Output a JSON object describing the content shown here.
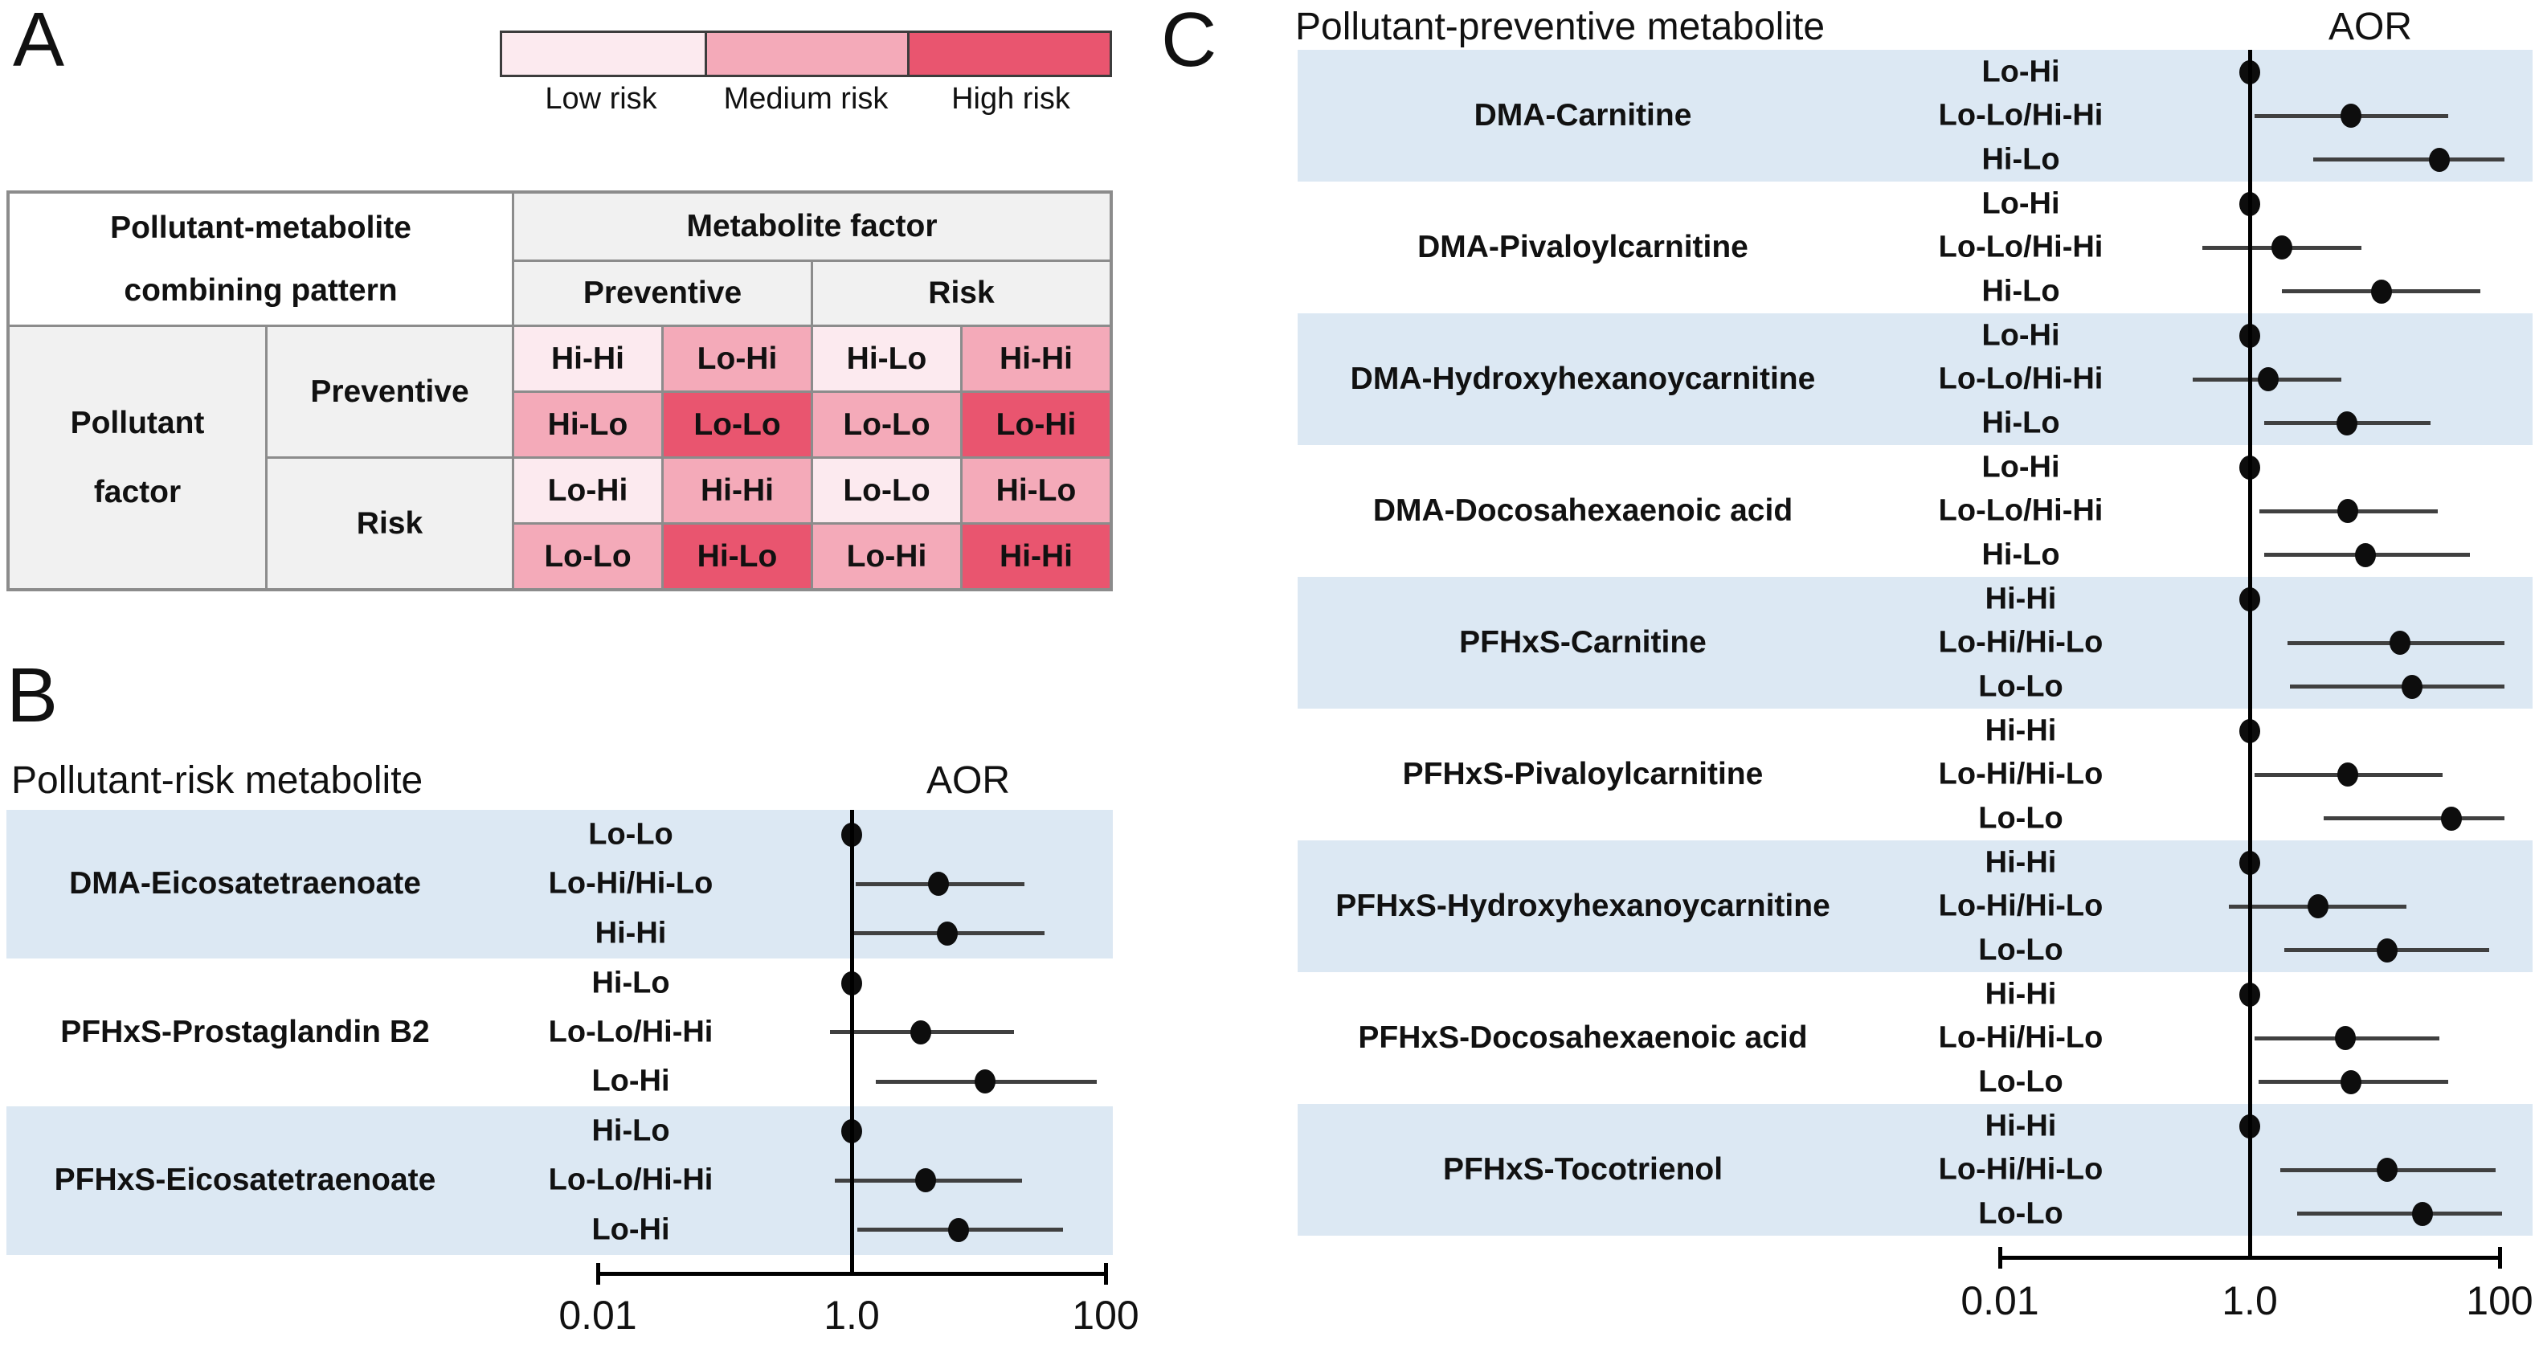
{
  "figure": {
    "panel_a_label": "A",
    "panel_b_label": "B",
    "panel_c_label": "C"
  },
  "chart_data": [
    {
      "type": "heatmap",
      "panel": "A",
      "legend": [
        {
          "label": "Low risk",
          "color": "#fceaef"
        },
        {
          "label": "Medium risk",
          "color": "#f4aab9"
        },
        {
          "label": "High risk",
          "color": "#e9556f"
        }
      ],
      "table": {
        "corner_header": [
          "Pollutant-metabolite",
          "combining pattern"
        ],
        "column_group_header": "Metabolite factor",
        "column_headers": [
          "Preventive",
          "Risk"
        ],
        "row_group_header": [
          "Pollutant",
          "factor"
        ],
        "row_headers": [
          "Preventive",
          "Risk"
        ],
        "risk_colors": {
          "low": "#fceaef",
          "medium": "#f4aab9",
          "high": "#e9556f"
        },
        "rows": [
          {
            "cells": [
              {
                "label": "Hi-Hi",
                "risk": "low"
              },
              {
                "label": "Lo-Hi",
                "risk": "medium"
              },
              {
                "label": "Hi-Lo",
                "risk": "low"
              },
              {
                "label": "Hi-Hi",
                "risk": "medium"
              }
            ]
          },
          {
            "cells": [
              {
                "label": "Hi-Lo",
                "risk": "medium"
              },
              {
                "label": "Lo-Lo",
                "risk": "high"
              },
              {
                "label": "Lo-Lo",
                "risk": "medium"
              },
              {
                "label": "Lo-Hi",
                "risk": "high"
              }
            ]
          },
          {
            "cells": [
              {
                "label": "Lo-Hi",
                "risk": "low"
              },
              {
                "label": "Hi-Hi",
                "risk": "medium"
              },
              {
                "label": "Lo-Lo",
                "risk": "low"
              },
              {
                "label": "Hi-Lo",
                "risk": "medium"
              }
            ]
          },
          {
            "cells": [
              {
                "label": "Lo-Lo",
                "risk": "medium"
              },
              {
                "label": "Hi-Lo",
                "risk": "high"
              },
              {
                "label": "Lo-Hi",
                "risk": "medium"
              },
              {
                "label": "Hi-Hi",
                "risk": "high"
              }
            ]
          }
        ]
      }
    },
    {
      "type": "forest",
      "panel": "B",
      "title": "Pollutant-risk metabolite",
      "value_header": "AOR",
      "x_axis": {
        "scale": "log",
        "min": 0.01,
        "max": 100,
        "ticks": [
          0.01,
          1.0,
          100
        ],
        "tick_labels": [
          "0.01",
          "1.0",
          "100"
        ]
      },
      "reference_line": 1.0,
      "band_colors": {
        "shaded": "#dce8f3",
        "unshaded": "#ffffff"
      },
      "groups": [
        {
          "name": "DMA-Eicosatetraenoate",
          "shaded": true,
          "rows": [
            {
              "pattern": "Lo-Lo",
              "aor": 1.0,
              "reference": true
            },
            {
              "pattern": "Lo-Hi/Hi-Lo",
              "aor": 4.8,
              "ci_low": 1.07,
              "ci_high": 23
            },
            {
              "pattern": "Hi-Hi",
              "aor": 5.7,
              "ci_low": 1.0,
              "ci_high": 33
            }
          ]
        },
        {
          "name": "PFHxS-Prostaglandin B2",
          "shaded": false,
          "rows": [
            {
              "pattern": "Hi-Lo",
              "aor": 1.0,
              "reference": true
            },
            {
              "pattern": "Lo-Lo/Hi-Hi",
              "aor": 3.5,
              "ci_low": 0.67,
              "ci_high": 19
            },
            {
              "pattern": "Lo-Hi",
              "aor": 11.2,
              "ci_low": 1.55,
              "ci_high": 85
            }
          ]
        },
        {
          "name": "PFHxS-Eicosatetraenoate",
          "shaded": true,
          "rows": [
            {
              "pattern": "Hi-Lo",
              "aor": 1.0,
              "reference": true
            },
            {
              "pattern": "Lo-Lo/Hi-Hi",
              "aor": 3.8,
              "ci_low": 0.74,
              "ci_high": 22
            },
            {
              "pattern": "Lo-Hi",
              "aor": 6.9,
              "ci_low": 1.1,
              "ci_high": 46
            }
          ]
        }
      ]
    },
    {
      "type": "forest",
      "panel": "C",
      "title": "Pollutant-preventive metabolite",
      "value_header": "AOR",
      "x_axis": {
        "scale": "log",
        "min": 0.01,
        "max": 100,
        "ticks": [
          0.01,
          1.0,
          100
        ],
        "tick_labels": [
          "0.01",
          "1.0",
          "100"
        ]
      },
      "reference_line": 1.0,
      "band_colors": {
        "shaded": "#dce8f3",
        "unshaded": "#ffffff"
      },
      "groups": [
        {
          "name": "DMA-Carnitine",
          "shaded": true,
          "rows": [
            {
              "pattern": "Lo-Hi",
              "aor": 1.0,
              "reference": true
            },
            {
              "pattern": "Lo-Lo/Hi-Hi",
              "aor": 6.5,
              "ci_low": 1.1,
              "ci_high": 39
            },
            {
              "pattern": "Hi-Lo",
              "aor": 33,
              "ci_low": 3.2,
              "ci_high": 110
            }
          ]
        },
        {
          "name": "DMA-Pivaloylcarnitine",
          "shaded": false,
          "rows": [
            {
              "pattern": "Lo-Hi",
              "aor": 1.0,
              "reference": true
            },
            {
              "pattern": "Lo-Lo/Hi-Hi",
              "aor": 1.8,
              "ci_low": 0.42,
              "ci_high": 7.8
            },
            {
              "pattern": "Hi-Lo",
              "aor": 11.3,
              "ci_low": 1.8,
              "ci_high": 70
            }
          ]
        },
        {
          "name": "DMA-Hydroxyhexanoycarnitine",
          "shaded": true,
          "rows": [
            {
              "pattern": "Lo-Hi",
              "aor": 1.0,
              "reference": true
            },
            {
              "pattern": "Lo-Lo/Hi-Hi",
              "aor": 1.4,
              "ci_low": 0.35,
              "ci_high": 5.4
            },
            {
              "pattern": "Hi-Lo",
              "aor": 6.0,
              "ci_low": 1.3,
              "ci_high": 28
            }
          ]
        },
        {
          "name": "DMA-Docosahexaenoic acid",
          "shaded": false,
          "rows": [
            {
              "pattern": "Lo-Hi",
              "aor": 1.0,
              "reference": true
            },
            {
              "pattern": "Lo-Lo/Hi-Hi",
              "aor": 6.1,
              "ci_low": 1.2,
              "ci_high": 32
            },
            {
              "pattern": "Hi-Lo",
              "aor": 8.4,
              "ci_low": 1.3,
              "ci_high": 58
            }
          ]
        },
        {
          "name": "PFHxS-Carnitine",
          "shaded": true,
          "rows": [
            {
              "pattern": "Hi-Hi",
              "aor": 1.0,
              "reference": true
            },
            {
              "pattern": "Lo-Hi/Hi-Lo",
              "aor": 16,
              "ci_low": 2.0,
              "ci_high": 110
            },
            {
              "pattern": "Lo-Lo",
              "aor": 20,
              "ci_low": 2.1,
              "ci_high": 110
            }
          ]
        },
        {
          "name": "PFHxS-Pivaloylcarnitine",
          "shaded": false,
          "rows": [
            {
              "pattern": "Hi-Hi",
              "aor": 1.0,
              "reference": true
            },
            {
              "pattern": "Lo-Hi/Hi-Lo",
              "aor": 6.1,
              "ci_low": 1.1,
              "ci_high": 35
            },
            {
              "pattern": "Lo-Lo",
              "aor": 41,
              "ci_low": 3.9,
              "ci_high": 110
            }
          ]
        },
        {
          "name": "PFHxS-Hydroxyhexanoycarnitine",
          "shaded": true,
          "rows": [
            {
              "pattern": "Hi-Hi",
              "aor": 1.0,
              "reference": true
            },
            {
              "pattern": "Lo-Hi/Hi-Lo",
              "aor": 3.5,
              "ci_low": 0.68,
              "ci_high": 18
            },
            {
              "pattern": "Lo-Lo",
              "aor": 12.6,
              "ci_low": 1.9,
              "ci_high": 83
            }
          ]
        },
        {
          "name": "PFHxS-Docosahexaenoic acid",
          "shaded": false,
          "rows": [
            {
              "pattern": "Hi-Hi",
              "aor": 1.0,
              "reference": true
            },
            {
              "pattern": "Lo-Hi/Hi-Lo",
              "aor": 5.8,
              "ci_low": 1.1,
              "ci_high": 33
            },
            {
              "pattern": "Lo-Lo",
              "aor": 6.5,
              "ci_low": 1.17,
              "ci_high": 39
            }
          ]
        },
        {
          "name": "PFHxS-Tocotrienol",
          "shaded": true,
          "rows": [
            {
              "pattern": "Hi-Hi",
              "aor": 1.0,
              "reference": true
            },
            {
              "pattern": "Lo-Hi/Hi-Lo",
              "aor": 12.6,
              "ci_low": 1.75,
              "ci_high": 93
            },
            {
              "pattern": "Lo-Lo",
              "aor": 24,
              "ci_low": 2.4,
              "ci_high": 105
            }
          ]
        }
      ]
    }
  ]
}
